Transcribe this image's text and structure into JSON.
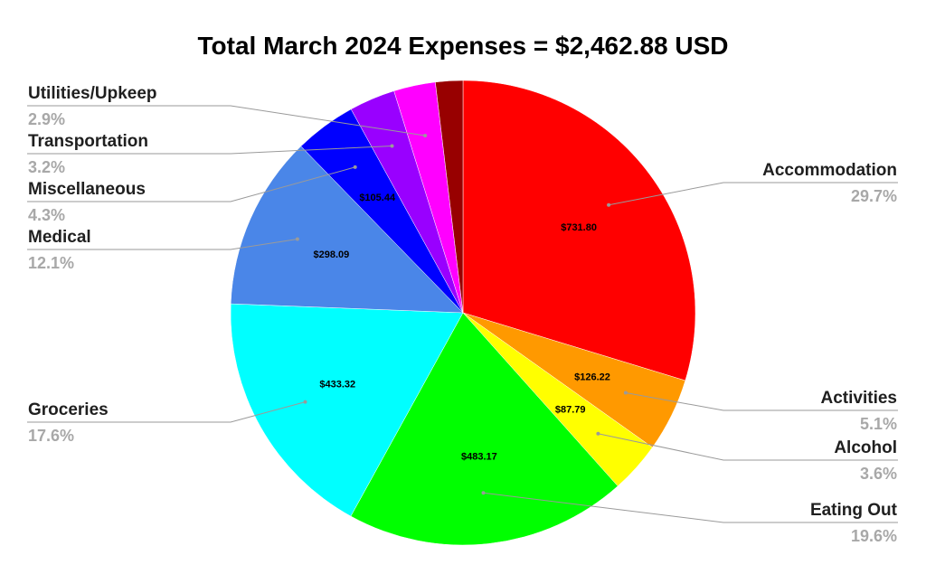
{
  "chart_data": {
    "type": "pie",
    "title": "Total March 2024 Expenses = $2,462.88 USD",
    "slices": [
      {
        "label": "Accommodation",
        "value": 731.8,
        "value_label": "$731.80",
        "percent_label": "29.7%",
        "color": "#ff0000"
      },
      {
        "label": "Activities",
        "value": 126.22,
        "value_label": "$126.22",
        "percent_label": "5.1%",
        "color": "#ff9900"
      },
      {
        "label": "Alcohol",
        "value": 87.79,
        "value_label": "$87.79",
        "percent_label": "3.6%",
        "color": "#ffff00"
      },
      {
        "label": "Eating Out",
        "value": 483.17,
        "value_label": "$483.17",
        "percent_label": "19.6%",
        "color": "#00ff00"
      },
      {
        "label": "Groceries",
        "value": 433.32,
        "value_label": "$433.32",
        "percent_label": "17.6%",
        "color": "#00ffff"
      },
      {
        "label": "Medical",
        "value": 298.09,
        "value_label": "$298.09",
        "percent_label": "12.1%",
        "color": "#4a86e8"
      },
      {
        "label": "Miscellaneous",
        "value": 105.44,
        "value_label": "$105.44",
        "percent_label": "4.3%",
        "color": "#0000ff"
      },
      {
        "label": "Transportation",
        "value": 78.81,
        "value_label": "",
        "percent_label": "3.2%",
        "color": "#9900ff"
      },
      {
        "label": "Utilities/Upkeep",
        "value": 71.42,
        "value_label": "",
        "percent_label": "2.9%",
        "color": "#ff00ff"
      },
      {
        "label": "",
        "value": 46.82,
        "value_label": "",
        "percent_label": "",
        "color": "#980000"
      }
    ]
  }
}
